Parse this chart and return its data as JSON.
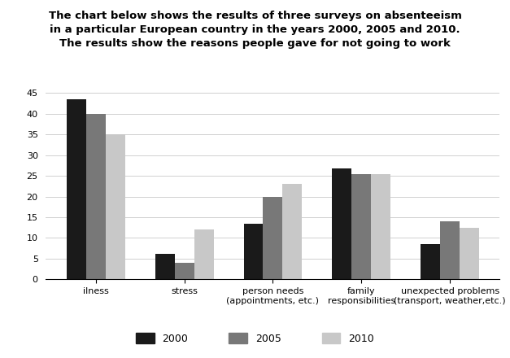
{
  "title_line1": "The chart below shows the results of three surveys on absenteeism",
  "title_line2": "in a particular European country in the years 2000, 2005 and 2010.",
  "title_line3": "The results show the reasons people gave for not going to work",
  "categories": [
    "ilness",
    "stress",
    "person needs\n(appointments, etc.)",
    "family\nresponsibilities",
    "unexpected problems\n(transport, weather,etc.)"
  ],
  "series": {
    "2000": [
      43.5,
      6.2,
      13.5,
      26.8,
      8.5
    ],
    "2005": [
      40,
      4,
      20,
      25.5,
      14
    ],
    "2010": [
      35,
      12,
      23,
      25.5,
      12.5
    ]
  },
  "colors": {
    "2000": "#1a1a1a",
    "2005": "#787878",
    "2010": "#c8c8c8"
  },
  "ylim": [
    0,
    45
  ],
  "yticks": [
    0,
    5,
    10,
    15,
    20,
    25,
    30,
    35,
    40,
    45
  ],
  "bar_width": 0.22,
  "legend_labels": [
    "2000",
    "2005",
    "2010"
  ],
  "background_color": "#ffffff",
  "grid_color": "#d0d0d0",
  "title_fontsize": 9.5,
  "tick_fontsize": 8,
  "legend_fontsize": 9
}
